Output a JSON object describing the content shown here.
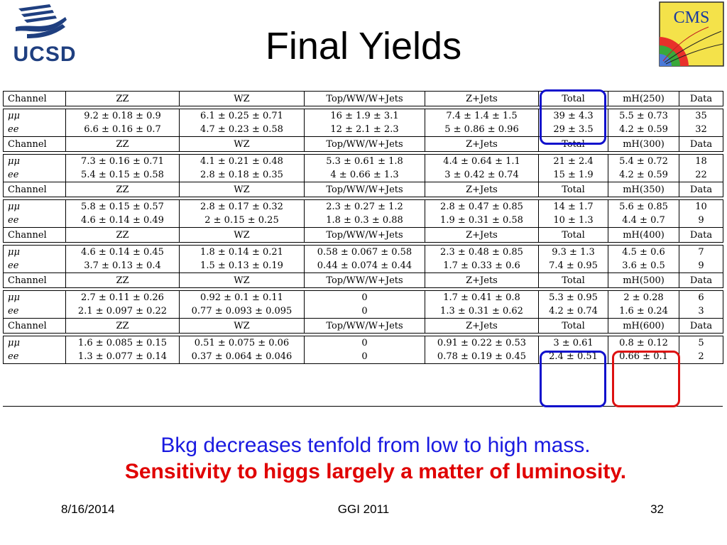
{
  "slide": {
    "title": "Final Yields",
    "logos": {
      "left": "UCSD",
      "right": "CMS"
    },
    "caption_line1": "Bkg decreases tenfold from low to high mass.",
    "caption_line2": "Sensitivity to higgs largely a matter of luminosity.",
    "footer": {
      "date": "8/16/2014",
      "center": "GGI 2011",
      "page": "32"
    },
    "colors": {
      "caption1": "#1a1ae0",
      "caption2": "#e00000",
      "ucsd_blue": "#1f3f80",
      "box_blue": "#1010cc",
      "box_red": "#dd1111"
    }
  },
  "table": {
    "header": [
      "Channel",
      "ZZ",
      "WZ",
      "Top/WW/W+Jets",
      "Z+Jets",
      "Total",
      "mH(250)",
      "Data"
    ],
    "blocks": [
      {
        "mass_label": "mH(250)",
        "rows": [
          [
            "μμ",
            "9.2 ± 0.18 ± 0.9",
            "6.1 ± 0.25 ± 0.71",
            "16 ± 1.9 ± 3.1",
            "7.4 ± 1.4 ± 1.5",
            "39 ± 4.3",
            "5.5 ± 0.73",
            "35"
          ],
          [
            "ee",
            "6.6 ± 0.16 ± 0.7",
            "4.7 ± 0.23 ± 0.58",
            "12 ± 2.1 ± 2.3",
            "5 ± 0.86 ± 0.96",
            "29 ± 3.5",
            "4.2 ± 0.59",
            "32"
          ]
        ]
      },
      {
        "mass_label": "mH(300)",
        "rows": [
          [
            "μμ",
            "7.3 ± 0.16 ± 0.71",
            "4.1 ± 0.21 ± 0.48",
            "5.3 ± 0.61 ± 1.8",
            "4.4 ± 0.64 ± 1.1",
            "21 ± 2.4",
            "5.4 ± 0.72",
            "18"
          ],
          [
            "ee",
            "5.4 ± 0.15 ± 0.58",
            "2.8 ± 0.18 ± 0.35",
            "4 ± 0.66 ± 1.3",
            "3 ± 0.42 ± 0.74",
            "15 ± 1.9",
            "4.2 ± 0.59",
            "22"
          ]
        ]
      },
      {
        "mass_label": "mH(350)",
        "rows": [
          [
            "μμ",
            "5.8 ± 0.15 ± 0.57",
            "2.8 ± 0.17 ± 0.32",
            "2.3 ± 0.27 ± 1.2",
            "2.8 ± 0.47 ± 0.85",
            "14 ± 1.7",
            "5.6 ± 0.85",
            "10"
          ],
          [
            "ee",
            "4.6 ± 0.14 ± 0.49",
            "2 ± 0.15 ± 0.25",
            "1.8 ± 0.3 ± 0.88",
            "1.9 ± 0.31 ± 0.58",
            "10 ± 1.3",
            "4.4 ± 0.7",
            "9"
          ]
        ]
      },
      {
        "mass_label": "mH(400)",
        "rows": [
          [
            "μμ",
            "4.6 ± 0.14 ± 0.45",
            "1.8 ± 0.14 ± 0.21",
            "0.58 ± 0.067 ± 0.58",
            "2.3 ± 0.48 ± 0.85",
            "9.3 ± 1.3",
            "4.5 ± 0.6",
            "7"
          ],
          [
            "ee",
            "3.7 ± 0.13 ± 0.4",
            "1.5 ± 0.13 ± 0.19",
            "0.44 ± 0.074 ± 0.44",
            "1.7 ± 0.33 ± 0.6",
            "7.4 ± 0.95",
            "3.6 ± 0.5",
            "9"
          ]
        ]
      },
      {
        "mass_label": "mH(500)",
        "rows": [
          [
            "μμ",
            "2.7 ± 0.11 ± 0.26",
            "0.92 ± 0.1 ± 0.11",
            "0",
            "1.7 ± 0.41 ± 0.8",
            "5.3 ± 0.95",
            "2 ± 0.28",
            "6"
          ],
          [
            "ee",
            "2.1 ± 0.097 ± 0.22",
            "0.77 ± 0.093 ± 0.095",
            "0",
            "1.3 ± 0.31 ± 0.62",
            "4.2 ± 0.74",
            "1.6 ± 0.24",
            "3"
          ]
        ]
      },
      {
        "mass_label": "mH(600)",
        "rows": [
          [
            "μμ",
            "1.6 ± 0.085 ± 0.15",
            "0.51 ± 0.075 ± 0.06",
            "0",
            "0.91 ± 0.22 ± 0.53",
            "3 ± 0.61",
            "0.8 ± 0.12",
            "5"
          ],
          [
            "ee",
            "1.3 ± 0.077 ± 0.14",
            "0.37 ± 0.064 ± 0.046",
            "0",
            "0.78 ± 0.19 ± 0.45",
            "2.4 ± 0.51",
            "0.66 ± 0.1",
            "2"
          ]
        ]
      }
    ]
  }
}
